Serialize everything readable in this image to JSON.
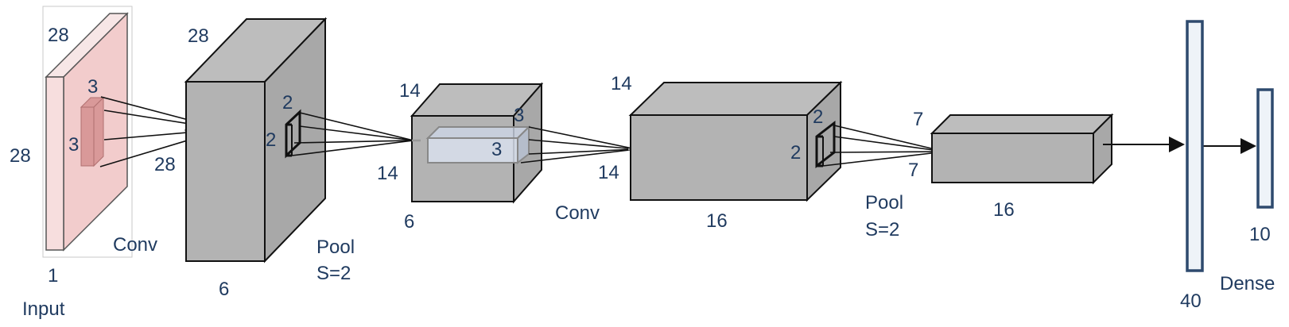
{
  "colors": {
    "input_face": "#f7dede",
    "input_side": "#f2cccc",
    "input_top": "#f7e6e6",
    "kernel": "#d99999",
    "block_front": "#b3b3b3",
    "block_top": "#bdbdbd",
    "block_side": "#a8a8a8",
    "dense_fill": "#eef3f8",
    "dense_stroke": "#2e4a6e",
    "label": "#1f3a5f",
    "line": "#111111"
  },
  "input": {
    "height": "28",
    "width": "28",
    "depth": "1",
    "name": "Input",
    "kernel_h": "3",
    "kernel_w": "3"
  },
  "conv1": {
    "op": "Conv",
    "out_size": "28",
    "height": "28",
    "channels": "6",
    "pool_h": "2",
    "pool_w": "2"
  },
  "pool1": {
    "op_line1": "Pool",
    "op_line2": "S=2"
  },
  "block2": {
    "height": "14",
    "width": "14",
    "channels": "6",
    "kernel_h": "3",
    "kernel_w": "3"
  },
  "conv2": {
    "op": "Conv",
    "out_size": "14",
    "height": "14",
    "channels": "16",
    "pool_h": "2",
    "pool_w": "2"
  },
  "pool2": {
    "op_line1": "Pool",
    "op_line2": "S=2"
  },
  "block4": {
    "height": "7",
    "width": "7",
    "channels": "16"
  },
  "dense": {
    "layer1_units": "40",
    "layer2_units": "10",
    "name": "Dense"
  }
}
